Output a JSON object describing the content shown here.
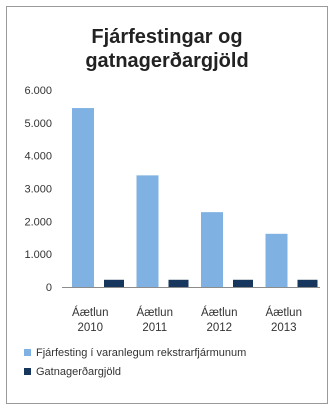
{
  "chart_data": {
    "type": "bar",
    "title": [
      "Fjárfestingar og",
      "gatnagerðargjöld"
    ],
    "categories": [
      [
        "Áætlun",
        "2010"
      ],
      [
        "Áætlun",
        "2011"
      ],
      [
        "Áætlun",
        "2012"
      ],
      [
        "Áætlun",
        "2013"
      ]
    ],
    "series": [
      {
        "name": "Fjárfesting í varanlegum rekstrarfjármunum",
        "color": "#7fb2e2",
        "values": [
          5450,
          3400,
          2280,
          1620
        ]
      },
      {
        "name": "Gatnagerðargjöld",
        "color": "#17365d",
        "values": [
          220,
          220,
          220,
          220
        ]
      }
    ],
    "yticks": [
      "0",
      "1.000",
      "2.000",
      "3.000",
      "4.000",
      "5.000",
      "6.000"
    ],
    "ylim": [
      0,
      6000
    ],
    "legend_position": "bottom"
  }
}
